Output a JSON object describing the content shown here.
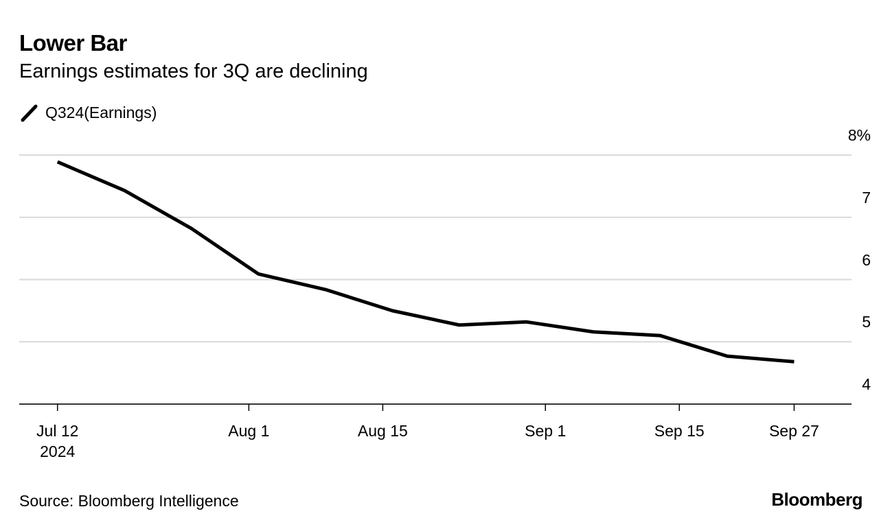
{
  "title": "Lower Bar",
  "subtitle": "Earnings estimates for 3Q are declining",
  "source": "Source: Bloomberg Intelligence",
  "brand": "Bloomberg",
  "chart_data": {
    "type": "line",
    "x": [
      "2024-07-12",
      "2024-07-19",
      "2024-07-26",
      "2024-08-02",
      "2024-08-09",
      "2024-08-16",
      "2024-08-23",
      "2024-08-30",
      "2024-09-06",
      "2024-09-13",
      "2024-09-20",
      "2024-09-27"
    ],
    "series": [
      {
        "name": "Q324(Earnings)",
        "color": "#000000",
        "values": [
          7.89,
          7.43,
          6.82,
          6.09,
          5.84,
          5.5,
          5.27,
          5.32,
          5.16,
          5.1,
          4.77,
          4.68
        ]
      }
    ],
    "xlim": [
      "2024-07-08",
      "2024-10-03"
    ],
    "xticks": [
      {
        "value": "2024-07-12",
        "label": "Jul 12\n2024"
      },
      {
        "value": "2024-08-01",
        "label": "Aug 1"
      },
      {
        "value": "2024-08-15",
        "label": "Aug 15"
      },
      {
        "value": "2024-09-01",
        "label": "Sep 1"
      },
      {
        "value": "2024-09-15",
        "label": "Sep 15"
      },
      {
        "value": "2024-09-27",
        "label": "Sep 27"
      }
    ],
    "ylim": [
      4,
      8
    ],
    "yticks": [
      4,
      5,
      6,
      7,
      {
        "value": 8,
        "label": "8%"
      }
    ],
    "grid": true,
    "legend": "top-left"
  }
}
